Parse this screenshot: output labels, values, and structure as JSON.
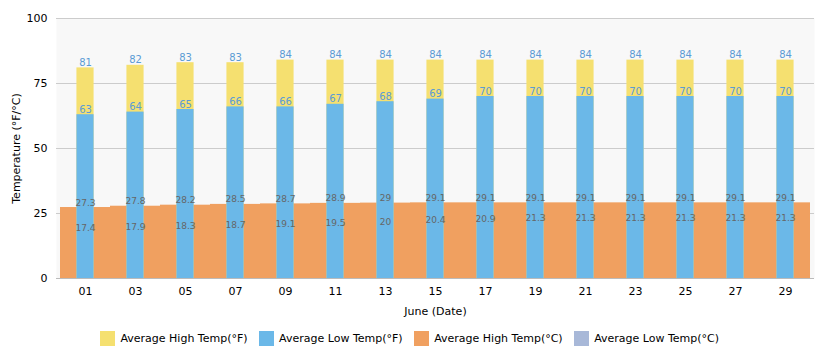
{
  "chart_data": {
    "type": "bar",
    "categories": [
      "01",
      "03",
      "05",
      "07",
      "09",
      "11",
      "13",
      "15",
      "17",
      "19",
      "21",
      "23",
      "25",
      "27",
      "29"
    ],
    "series": [
      {
        "name": "Average High Temp(°F)",
        "color": "#F5E070",
        "values": [
          81,
          82,
          83,
          83,
          84,
          84,
          84,
          84,
          84,
          84,
          84,
          84,
          84,
          84,
          84
        ]
      },
      {
        "name": "Average Low Temp(°F)",
        "color": "#6BB8E8",
        "values": [
          63,
          64,
          65,
          66,
          66,
          67,
          68,
          69,
          70,
          70,
          70,
          70,
          70,
          70,
          70
        ]
      },
      {
        "name": "Average High Temp(°C)",
        "color": "#F0A060",
        "values": [
          27.3,
          27.8,
          28.2,
          28.5,
          28.7,
          28.9,
          29,
          29.1,
          29.1,
          29.1,
          29.1,
          29.1,
          29.1,
          29.1,
          29.1
        ]
      },
      {
        "name": "Average Low Temp(°C)",
        "color": "#A8B8D8",
        "values": [
          17.4,
          17.9,
          18.3,
          18.7,
          19.1,
          19.5,
          20,
          20.4,
          20.9,
          21.3,
          21.3,
          21.3,
          21.3,
          21.3,
          21.3
        ]
      }
    ],
    "xlabel": "June (Date)",
    "ylabel": "Temperature (°F/°C)",
    "ylim": [
      0,
      100
    ],
    "yticks": [
      0,
      25,
      50,
      75,
      100
    ],
    "grid": true,
    "legend": "bottom",
    "data_labels": true
  }
}
